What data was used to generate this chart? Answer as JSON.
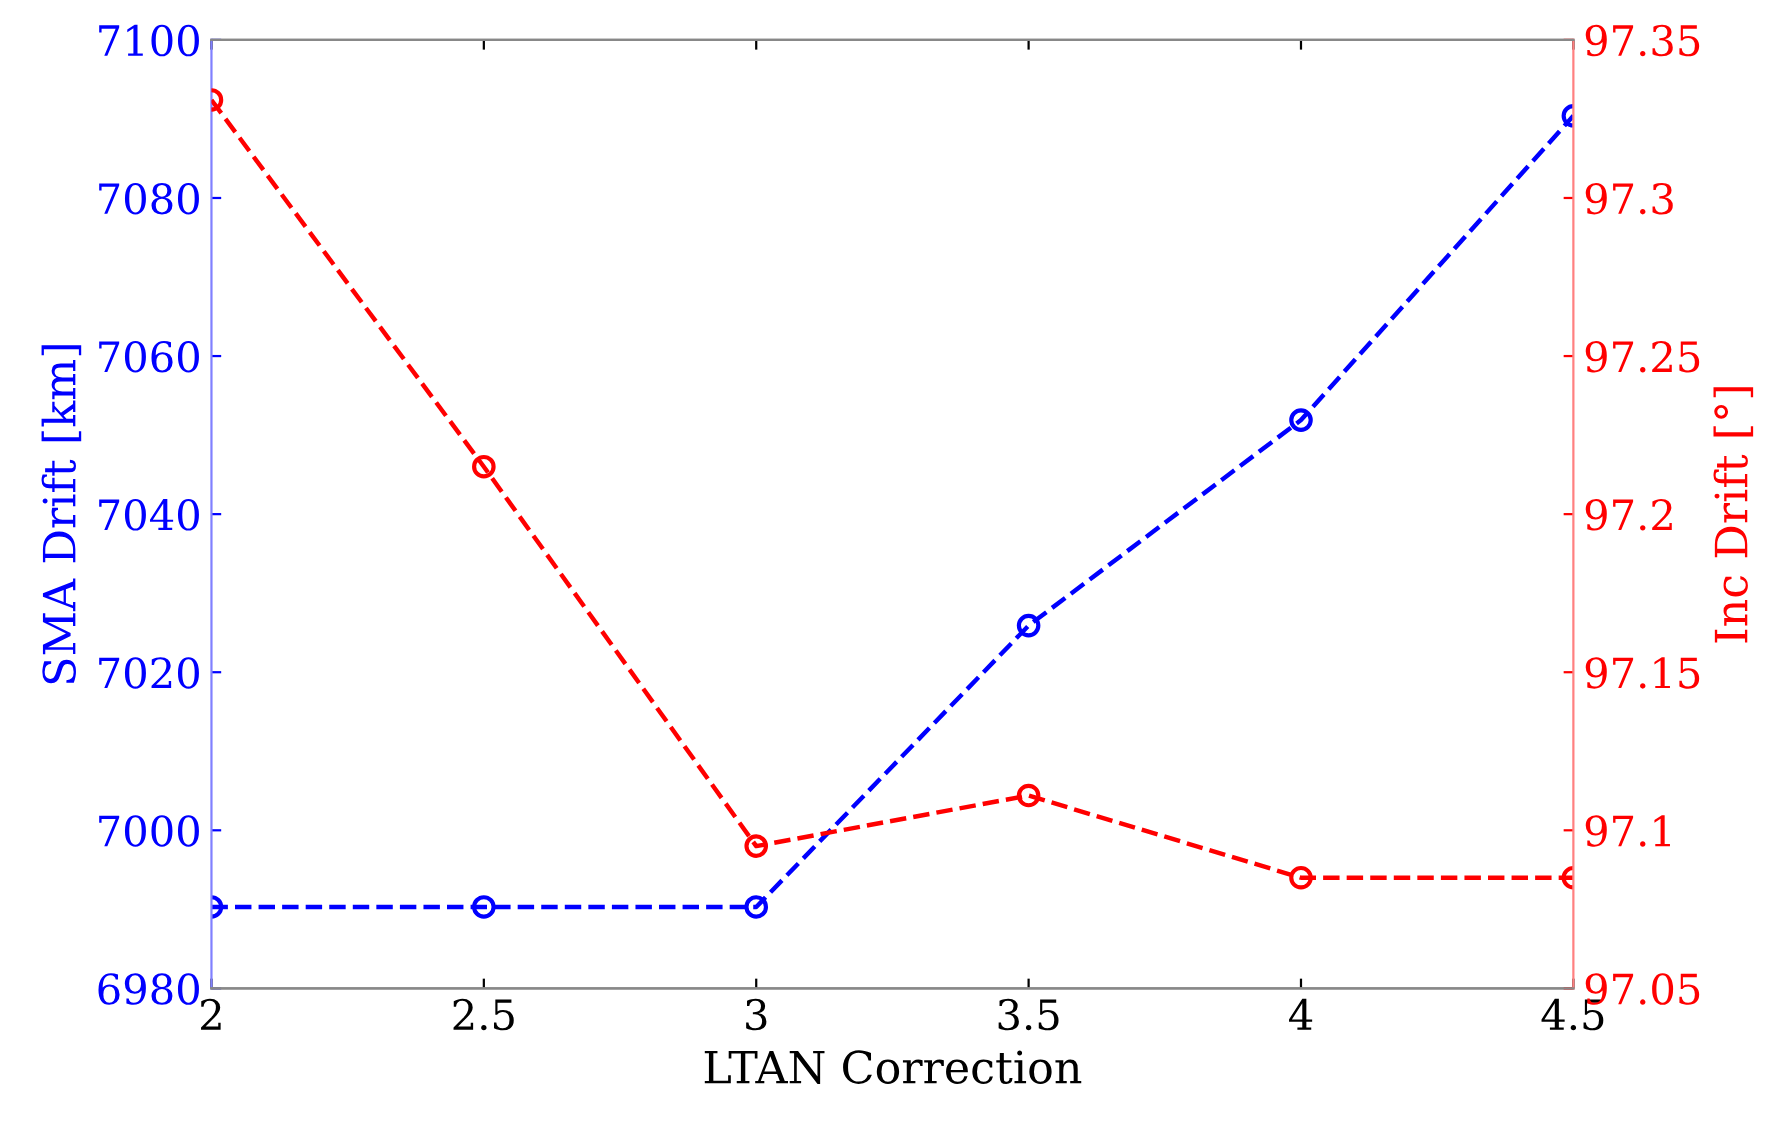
{
  "chart_data": {
    "type": "line",
    "x": [
      2,
      2.5,
      3,
      3.5,
      4,
      4.5
    ],
    "xlabel": "LTAN Correction",
    "ylabel": "SMA Drift [km]",
    "y2label": "Inc Drift [°]",
    "series": [
      {
        "color": "#0000ff",
        "values": [
          6990.3,
          6990.3,
          6990.3,
          7025.9,
          7051.9,
          7090.4
        ]
      },
      {
        "color": "#ff0000",
        "axis": "y2",
        "values": [
          97.331,
          97.215,
          97.095,
          97.111,
          97.085,
          97.085
        ]
      }
    ],
    "xlim": [
      2,
      4.5
    ],
    "xticks": [
      2,
      2.5,
      3,
      3.5,
      4,
      4.5
    ],
    "ylim": [
      6980,
      7100
    ],
    "yticks": [
      6980,
      7000,
      7020,
      7040,
      7060,
      7080,
      7100
    ],
    "y2lim": [
      97.05,
      97.35
    ],
    "y2ticks": [
      97.05,
      97.1,
      97.15,
      97.2,
      97.25,
      97.3,
      97.35
    ],
    "marker": "circle",
    "line_style": "dashed",
    "grid": false,
    "legend": false
  }
}
